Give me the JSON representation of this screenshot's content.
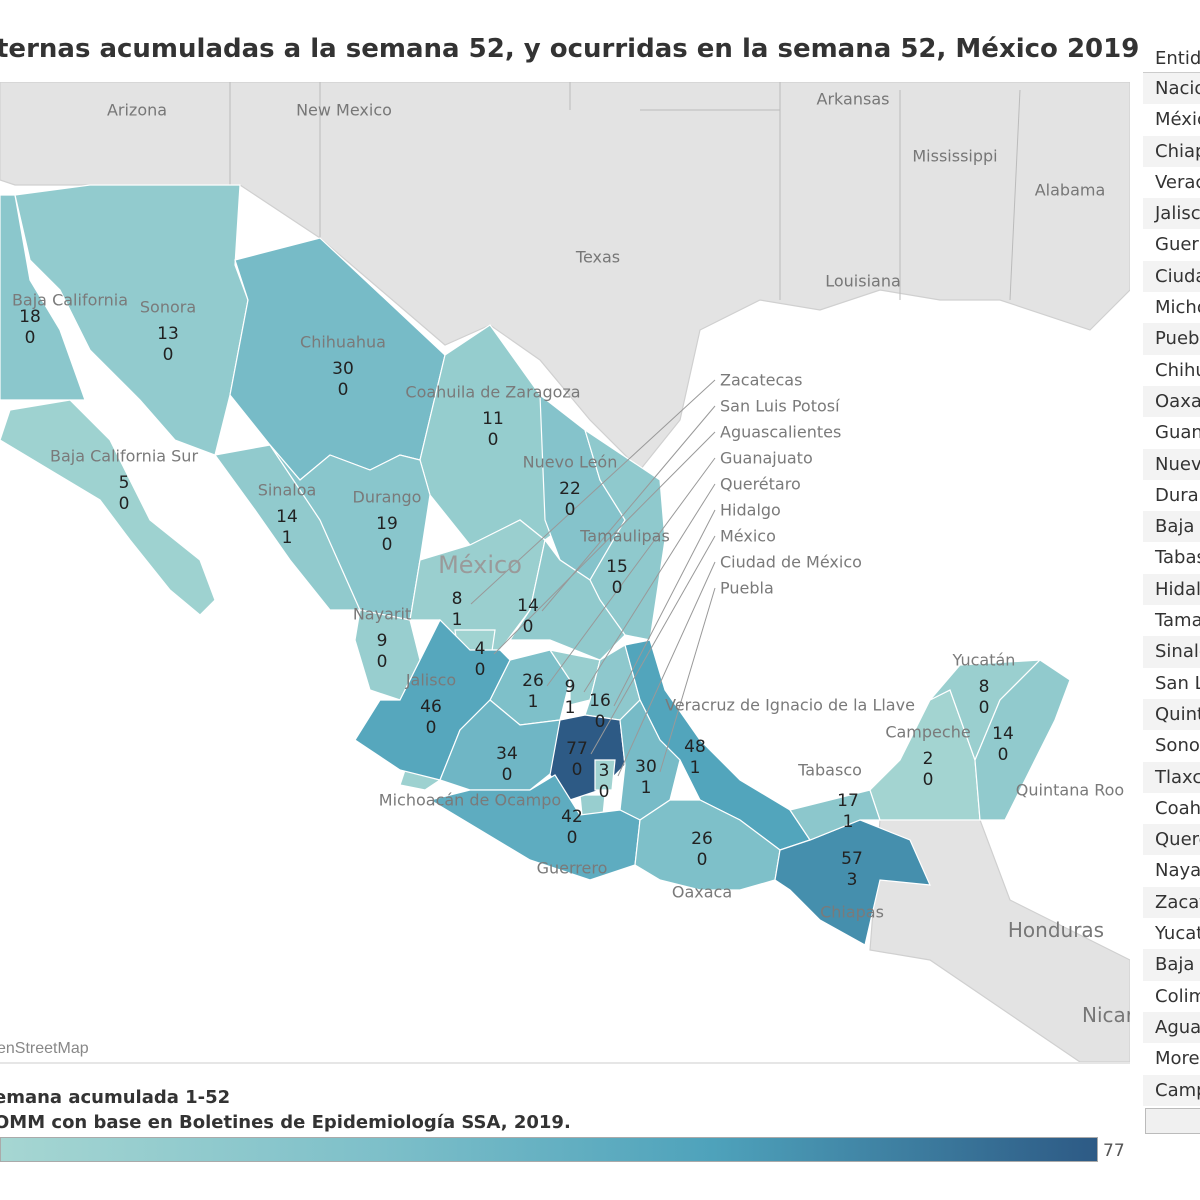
{
  "title": "ternas acumuladas a la semana 52, y ocurridas en la semana 52, México 2019",
  "map": {
    "attribution": "enStreetMap",
    "geo_labels": [
      "Arizona",
      "New Mexico",
      "Arkansas",
      "Mississippi",
      "Alabama",
      "Texas",
      "Louisiana",
      "Honduras",
      "Nicar",
      "México"
    ],
    "colors": {
      "low": "#a6d6d2",
      "high": "#2d5a85",
      "land": "#e3e3e3",
      "water": "#ffffff"
    },
    "states": [
      {
        "name": "Baja California",
        "acumuladas": 18,
        "semana_52": 0
      },
      {
        "name": "Sonora",
        "acumuladas": 13,
        "semana_52": 0
      },
      {
        "name": "Chihuahua",
        "acumuladas": 30,
        "semana_52": 0
      },
      {
        "name": "Coahuila de Zaragoza",
        "acumuladas": 11,
        "semana_52": 0
      },
      {
        "name": "Nuevo León",
        "acumuladas": 22,
        "semana_52": 0
      },
      {
        "name": "Baja California Sur",
        "acumuladas": 5,
        "semana_52": 0
      },
      {
        "name": "Sinaloa",
        "acumuladas": 14,
        "semana_52": 1
      },
      {
        "name": "Durango",
        "acumuladas": 19,
        "semana_52": 0
      },
      {
        "name": "Tamaulipas",
        "acumuladas": 15,
        "semana_52": 0
      },
      {
        "name": "Zacatecas",
        "acumuladas": 8,
        "semana_52": 1
      },
      {
        "name": "San Luis Potosí",
        "acumuladas": 14,
        "semana_52": 0
      },
      {
        "name": "Nayarit",
        "acumuladas": 9,
        "semana_52": 0
      },
      {
        "name": "Aguascalientes",
        "acumuladas": 4,
        "semana_52": 0
      },
      {
        "name": "Guanajuato",
        "acumuladas": 26,
        "semana_52": 1
      },
      {
        "name": "Querétaro",
        "acumuladas": 9,
        "semana_52": 1
      },
      {
        "name": "Hidalgo",
        "acumuladas": 16,
        "semana_52": 0
      },
      {
        "name": "Jalisco",
        "acumuladas": 46,
        "semana_52": 0
      },
      {
        "name": "Veracruz de Ignacio de la Llave",
        "acumuladas": 48,
        "semana_52": 1
      },
      {
        "name": "Michoacán de Ocampo",
        "acumuladas": 34,
        "semana_52": 0
      },
      {
        "name": "México",
        "acumuladas": 77,
        "semana_52": 0
      },
      {
        "name": "Ciudad de México",
        "acumuladas": 3,
        "semana_52": 0
      },
      {
        "name": "Puebla",
        "acumuladas": 30,
        "semana_52": 1
      },
      {
        "name": "Guerrero",
        "acumuladas": 42,
        "semana_52": 0
      },
      {
        "name": "Oaxaca",
        "acumuladas": 26,
        "semana_52": 0
      },
      {
        "name": "Chiapas",
        "acumuladas": 57,
        "semana_52": 3
      },
      {
        "name": "Tabasco",
        "acumuladas": 17,
        "semana_52": 1
      },
      {
        "name": "Campeche",
        "acumuladas": 2,
        "semana_52": 0
      },
      {
        "name": "Yucatán",
        "acumuladas": 8,
        "semana_52": 0
      },
      {
        "name": "Quintana Roo",
        "acumuladas": 14,
        "semana_52": 0
      }
    ]
  },
  "legend": {
    "line1": "emana acumulada 1-52",
    "line2": "OMM con base en Boletines de Epidemiología SSA, 2019.",
    "max_label": "77",
    "min": 0,
    "max": 77
  },
  "table": {
    "header": "Entidad",
    "rows": [
      "Nacional",
      "México",
      "Chiapas",
      "Veracruz",
      "Jalisco",
      "Guerrero",
      "Ciudad de México",
      "Michoacán",
      "Puebla",
      "Chihuahua",
      "Oaxaca",
      "Guanajuato",
      "Nuevo León",
      "Durango",
      "Baja California",
      "Tabasco",
      "Hidalgo",
      "Tamaulipas",
      "Sinaloa",
      "San Luis Potosí",
      "Quintana Roo",
      "Sonora",
      "Tlaxcala",
      "Coahuila",
      "Querétaro",
      "Nayarit",
      "Zacatecas",
      "Yucatán",
      "Baja California Sur",
      "Colima",
      "Aguascalientes",
      "Morelos",
      "Campeche"
    ]
  }
}
